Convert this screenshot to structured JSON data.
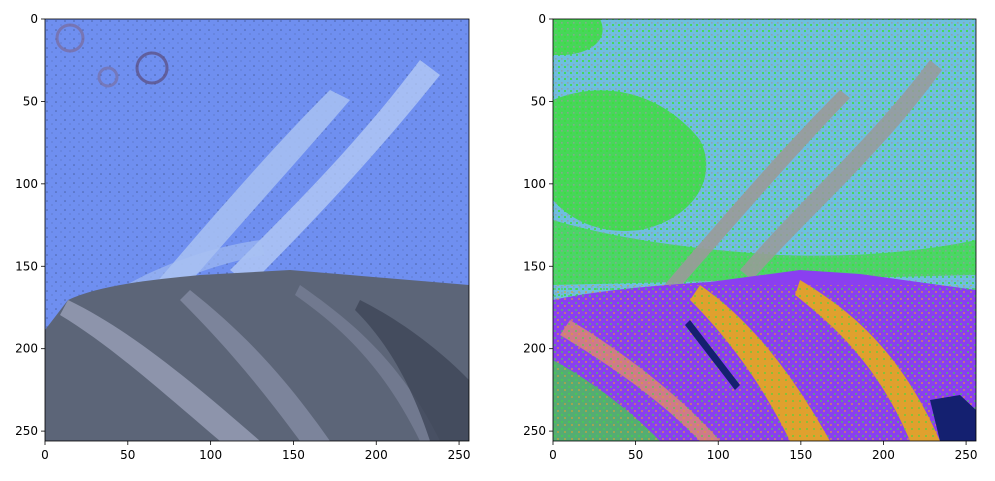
{
  "panels": [
    {
      "id": "left",
      "kind": "satellite-image",
      "x_ticks": [
        "0",
        "50",
        "100",
        "150",
        "200",
        "250"
      ],
      "y_ticks": [
        "0",
        "50",
        "100",
        "150",
        "200",
        "250"
      ],
      "xlim": [
        0,
        256
      ],
      "ylim": [
        256,
        0
      ]
    },
    {
      "id": "right",
      "kind": "classification-map",
      "x_ticks": [
        "0",
        "50",
        "100",
        "150",
        "200",
        "250"
      ],
      "y_ticks": [
        "0",
        "50",
        "100",
        "150",
        "200",
        "250"
      ],
      "xlim": [
        0,
        256
      ],
      "ylim": [
        256,
        0
      ],
      "class_colors": {
        "sky-blue": "#6fbee0",
        "green": "#3fdc3f",
        "purple": "#8a3ff0",
        "orange": "#e0a02e",
        "gray": "#9a9a9a",
        "navy": "#142070",
        "salmon": "#e08a70"
      }
    }
  ],
  "left_colors": {
    "water-blue": "#6f8ff0",
    "light-streak": "#a9c2f2",
    "rock-gray": "#5c6578",
    "rock-light": "#9aa0b8"
  }
}
